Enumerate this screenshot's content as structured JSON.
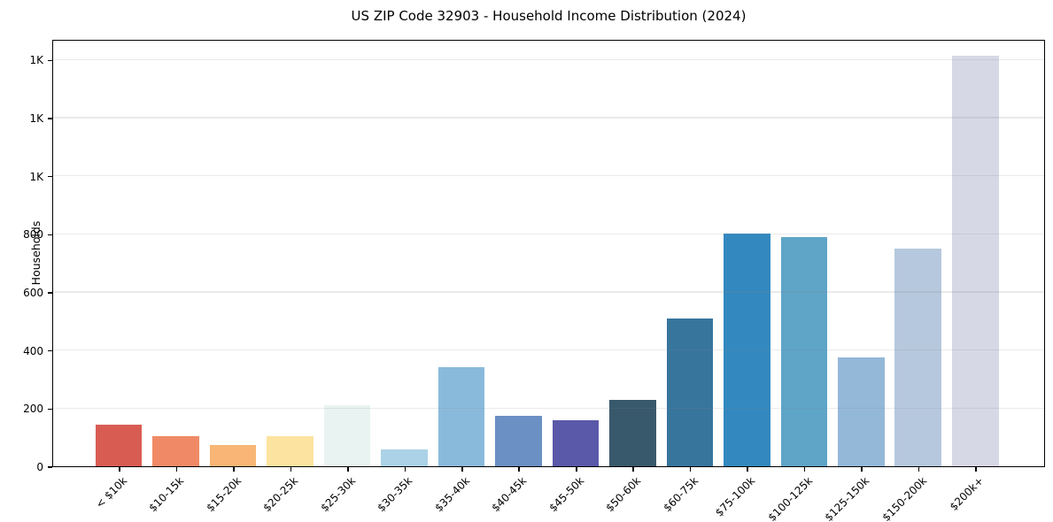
{
  "chart_data": {
    "type": "bar",
    "title": "US ZIP Code 32903 - Household Income Distribution (2024)",
    "xlabel": "",
    "ylabel": "Households",
    "categories": [
      "< $10k",
      "$10-15k",
      "$15-20k",
      "$20-25k",
      "$25-30k",
      "$30-35k",
      "$35-40k",
      "$40-45k",
      "$45-50k",
      "$50-60k",
      "$60-75k",
      "$75-100k",
      "$100-125k",
      "$125-150k",
      "$150-200k",
      "$200k+"
    ],
    "values": [
      142,
      105,
      74,
      105,
      211,
      59,
      341,
      174,
      159,
      229,
      509,
      801,
      790,
      375,
      748,
      1413
    ],
    "bar_colors": [
      "#d95c53",
      "#f08a66",
      "#f8b575",
      "#fce3a0",
      "#e9f3f2",
      "#abd2e6",
      "#8abadb",
      "#6b90c4",
      "#5a59a9",
      "#38596c",
      "#38759d",
      "#3389bf",
      "#5ea5c8",
      "#94b8d8",
      "#b6c8dd",
      "#d7d8e5"
    ],
    "ylim": [
      0,
      1471
    ],
    "yticks": [
      0,
      200,
      400,
      600,
      800,
      1000,
      1200,
      1400
    ],
    "ytick_labels": [
      "0",
      "200",
      "400",
      "600",
      "800",
      "1K",
      "1K",
      "1K"
    ],
    "grid": "horizontal-only",
    "legend": "none",
    "background": "#ffffff",
    "spine_color": "#000000"
  }
}
